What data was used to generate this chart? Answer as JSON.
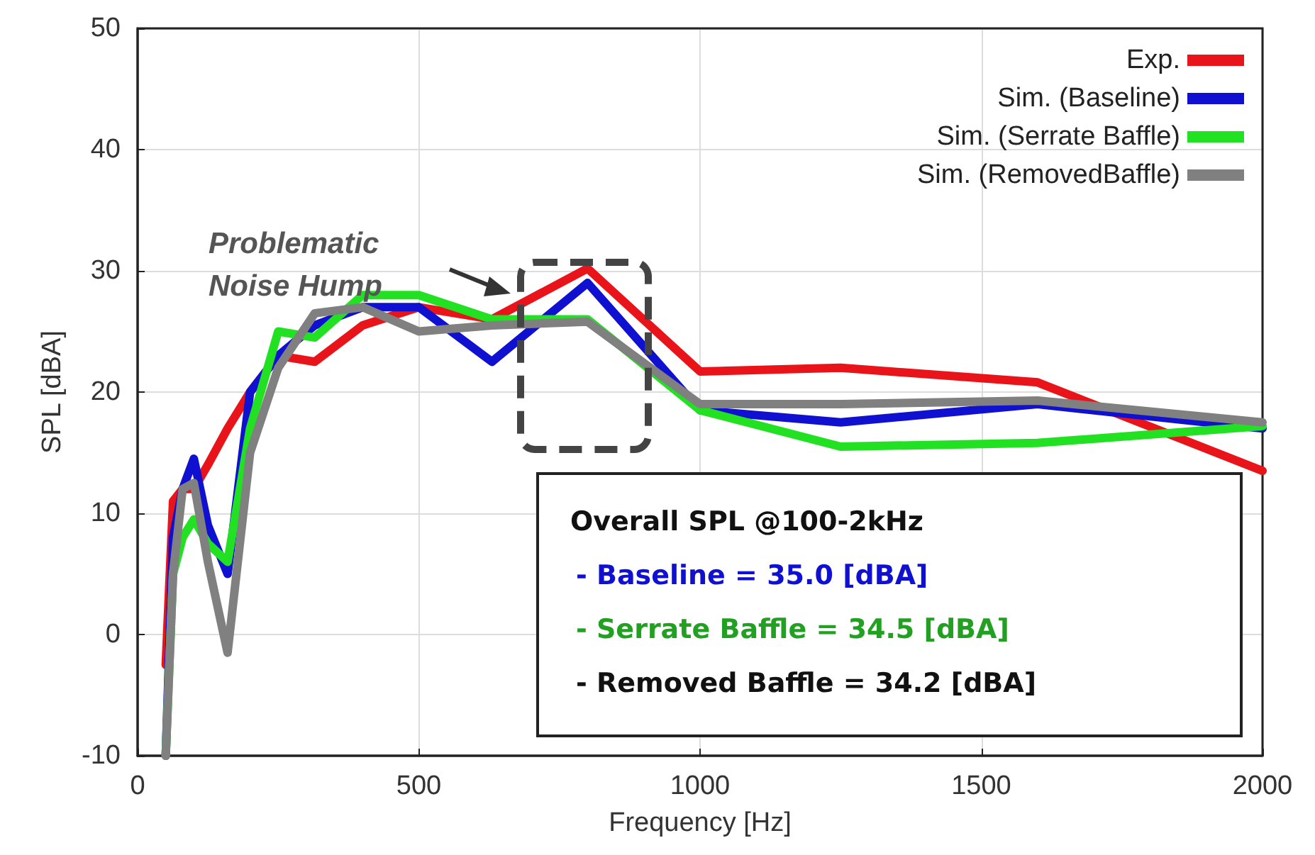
{
  "chart_data": {
    "type": "line",
    "xlabel": "Frequency [Hz]",
    "ylabel": "SPL [dBA]",
    "x": [
      50,
      63,
      80,
      100,
      125,
      160,
      200,
      250,
      315,
      400,
      500,
      630,
      800,
      1000,
      1250,
      1600,
      2000
    ],
    "series": [
      {
        "name": "Exp.",
        "color": "#e8141a",
        "values": [
          -2.5,
          11,
          12,
          12,
          14,
          17,
          20,
          23,
          22.5,
          25.5,
          27,
          26,
          30.2,
          21.7,
          22,
          20.8,
          13.5
        ]
      },
      {
        "name": "Sim. (Baseline)",
        "color": "#1010d0",
        "values": [
          -10,
          8,
          12,
          14.5,
          9,
          5,
          20,
          23,
          25.5,
          27,
          27,
          22.5,
          29,
          18.5,
          17.5,
          19,
          17
        ]
      },
      {
        "name": "Sim. (Serrate Baffle)",
        "color": "#22e022",
        "values": [
          -10,
          5,
          8,
          9.5,
          7.5,
          6,
          17,
          25,
          24.5,
          28,
          28,
          26,
          26,
          18.5,
          15.5,
          15.8,
          17.2
        ]
      },
      {
        "name": "Sim. (RemovedBaffle)",
        "color": "#808080",
        "values": [
          -10,
          5,
          12,
          12.5,
          6,
          -1.5,
          15,
          22,
          26.5,
          27,
          25,
          25.5,
          25.8,
          19,
          19,
          19.3,
          17.5
        ]
      }
    ],
    "xlim": [
      0,
      2000
    ],
    "xticks": [
      0,
      500,
      1000,
      1500,
      2000
    ],
    "ylim": [
      -10,
      50
    ],
    "yticks": [
      -10,
      0,
      10,
      20,
      30,
      40,
      50
    ],
    "grid": true,
    "legend": "top right",
    "marker": "none",
    "line_style": "solid",
    "annotations": [
      "Problematic Noise Hump",
      "Overall SPL @100-2kHz",
      "- Baseline = 35.0 [dBA]",
      "- Serrate Baffle = 34.5 [dBA]",
      "- Removed Baffle = 34.2 [dBA]"
    ]
  }
}
